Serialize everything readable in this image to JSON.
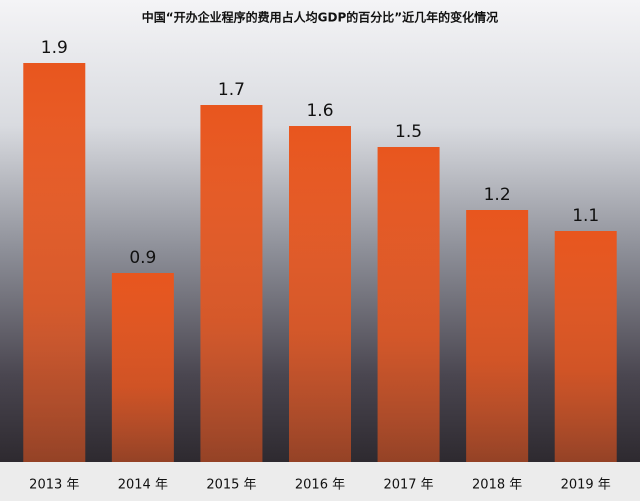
{
  "chart_data": {
    "type": "bar",
    "title": "中国“开办企业程序的费用占人均GDP的百分比”近几年的变化情况",
    "categories": [
      "2013 年",
      "2014 年",
      "2015 年",
      "2016 年",
      "2017 年",
      "2018 年",
      "2019 年"
    ],
    "values": [
      1.9,
      0.9,
      1.7,
      1.6,
      1.5,
      1.2,
      1.1
    ],
    "color": "#e8561e"
  }
}
